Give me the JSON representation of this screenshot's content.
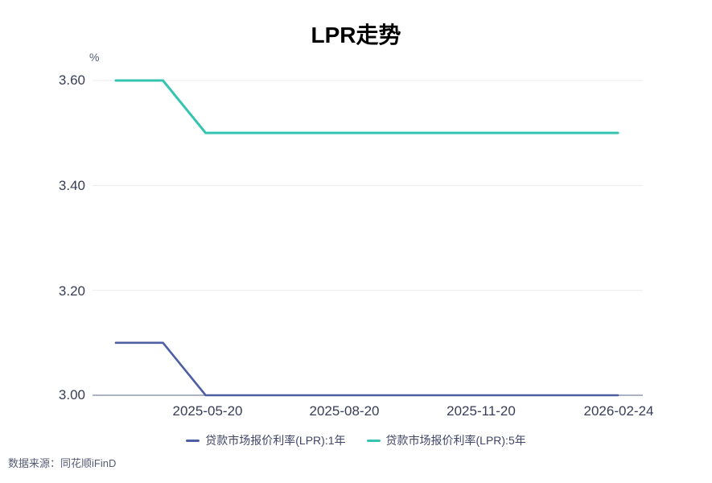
{
  "chart_data": {
    "type": "line",
    "title": "LPR走势",
    "y_unit": "%",
    "ylim": [
      3.0,
      3.6
    ],
    "y_ticks": [
      3.6,
      3.4,
      3.2,
      3.0
    ],
    "y_tick_labels": [
      "3.60",
      "3.40",
      "3.20",
      "3.00"
    ],
    "x_tick_labels": [
      "2025-05-20",
      "2025-08-20",
      "2025-11-20",
      "2026-02-24"
    ],
    "x_range": [
      "2025-03-20",
      "2026-02-24"
    ],
    "grid": "horizontal",
    "legend_position": "bottom",
    "series": [
      {
        "name": "贷款市场报价利率(LPR):1年",
        "color": "#4d5fa2",
        "points": [
          [
            "2025-03-20",
            3.1
          ],
          [
            "2025-04-21",
            3.1
          ],
          [
            "2025-05-20",
            3.0
          ],
          [
            "2026-02-24",
            3.0
          ]
        ]
      },
      {
        "name": "贷款市场报价利率(LPR):5年",
        "color": "#35c3b2",
        "points": [
          [
            "2025-03-20",
            3.6
          ],
          [
            "2025-04-21",
            3.6
          ],
          [
            "2025-05-20",
            3.5
          ],
          [
            "2026-02-24",
            3.5
          ]
        ]
      }
    ],
    "colors": {
      "grid": "#ebebeb",
      "axis": "#7d85a5",
      "tick_text": "#373d58"
    }
  },
  "source": "数据来源：同花顺iFinD"
}
